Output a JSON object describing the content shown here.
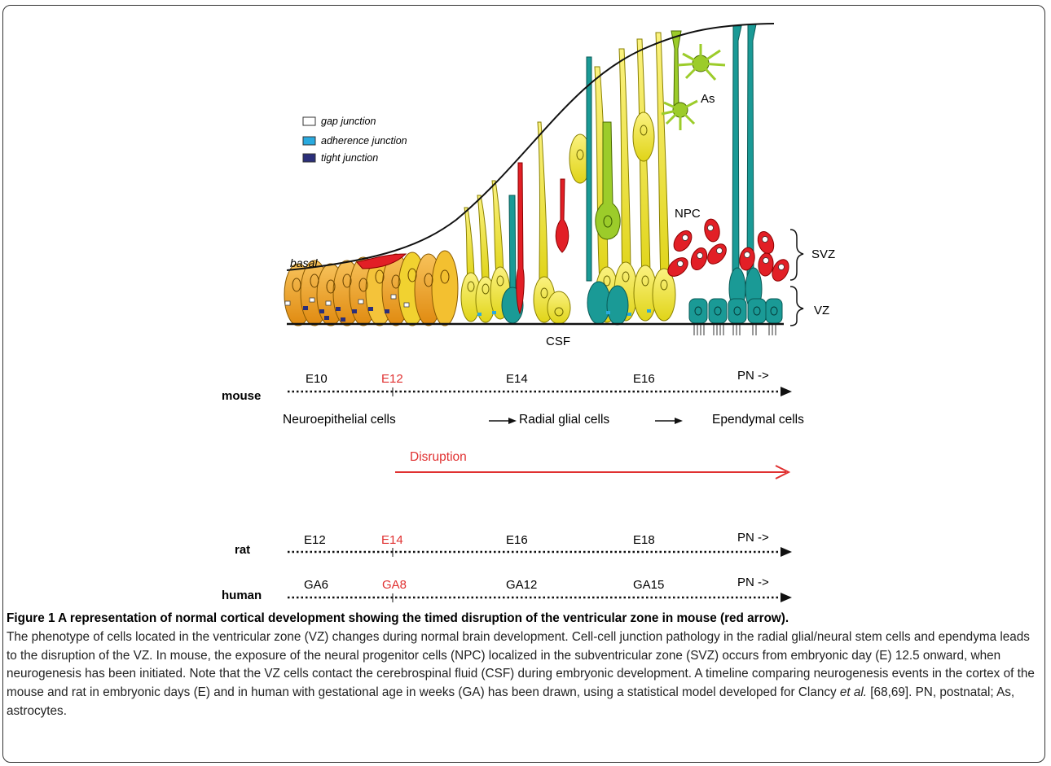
{
  "legend": {
    "gap": "gap junction",
    "adherence": "adherence junction",
    "tight": "tight junction"
  },
  "diagram_labels": {
    "basal": "basal",
    "as": "As",
    "npc": "NPC",
    "svz": "SVZ",
    "vz": "VZ",
    "csf": "CSF"
  },
  "timeline": {
    "mouse": {
      "label": "mouse",
      "ticks": [
        "E10",
        "E12",
        "E14",
        "E16",
        "PN ->"
      ],
      "highlight_index": 1
    },
    "stages": [
      "Neuroepithelial cells",
      "Radial glial cells",
      "Ependymal cells"
    ],
    "disruption": "Disruption",
    "rat": {
      "label": "rat",
      "ticks": [
        "E12",
        "E14",
        "E16",
        "E18",
        "PN ->"
      ]
    },
    "human": {
      "label": "human",
      "ticks": [
        "GA6",
        "GA8",
        "GA12",
        "GA15",
        "PN ->"
      ]
    }
  },
  "colors": {
    "red": "#e03030",
    "teal": "#1a9a96",
    "yellow": "#f2e633",
    "orange": "#f0a020",
    "green": "#9ccc2a",
    "cell_red": "#e21f26",
    "tight_navy": "#2b2f7a",
    "adherence_cyan": "#29aadf"
  },
  "caption": {
    "title": "Figure 1 A representation of normal cortical development showing the timed disruption of the ventricular zone in mouse (red arrow).",
    "text_before_italic": "The phenotype of cells located in the ventricular zone (VZ) changes during normal brain development. Cell-cell junction pathology in the radial glial/neural stem cells and ependyma leads to the disruption of the VZ. In mouse, the exposure of the neural progenitor cells (NPC) localized in the subventricular zone (SVZ) occurs from embryonic day (E) 12.5 onward, when neurogenesis has been initiated. Note that the VZ cells contact the cerebrospinal fluid (CSF) during embryonic development. A timeline comparing neurogenesis events in the cortex of the mouse and rat in embryonic days (E) and in human with gestational age in weeks (GA) has been drawn, using a statistical model developed for Clancy ",
    "italic": "et al.",
    "text_after_italic": " [68,69]. PN, postnatal; As, astrocytes."
  }
}
